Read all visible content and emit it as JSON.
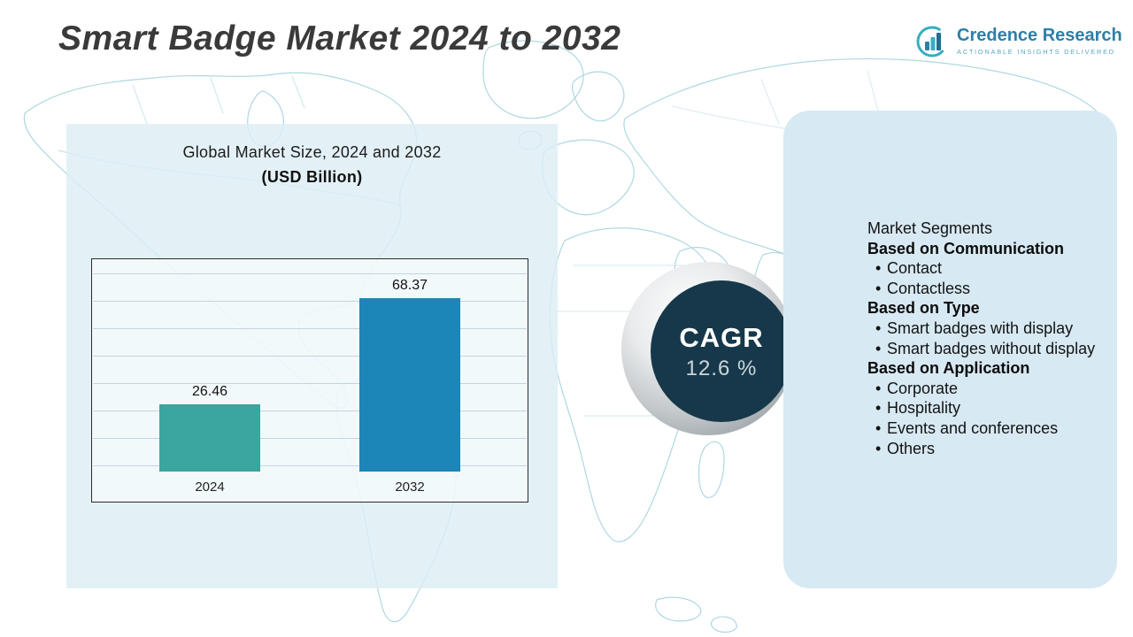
{
  "header": {
    "title": "Smart Badge Market 2024 to 2032",
    "logo": {
      "brand": "Credence Research",
      "tagline": "Actionable Insights Delivered"
    }
  },
  "chart_panel": {
    "heading": "Global Market Size, 2024 and 2032",
    "subheading": "(USD Billion)"
  },
  "chart_data": {
    "type": "bar",
    "title": "Global Market Size, 2024 and 2032 (USD Billion)",
    "categories": [
      "2024",
      "2032"
    ],
    "values": [
      26.46,
      68.37
    ],
    "bar_colors": [
      "#3BA5A0",
      "#1C86B8"
    ],
    "xlabel": "",
    "ylabel": "USD Billion",
    "ylim": [
      0,
      80
    ],
    "grid": true,
    "legend": false
  },
  "cagr": {
    "label": "CAGR",
    "value": "12.6 %"
  },
  "segments": {
    "heading": "Market Segments",
    "groups": [
      {
        "title": "Based on Communication",
        "items": [
          "Contact",
          "Contactless"
        ]
      },
      {
        "title": "Based on Type",
        "items": [
          "Smart badges with display",
          "Smart badges without display"
        ]
      },
      {
        "title": "Based on Application",
        "items": [
          "Corporate",
          "Hospitality",
          "Events and conferences",
          "Others"
        ]
      }
    ]
  },
  "colors": {
    "accent_teal": "#35AEC2",
    "brand_blue": "#2E7FA8",
    "panel_blue": "#D7E9F3",
    "cagr_circle": "#16384A",
    "map_line": "#AFD7E1"
  }
}
